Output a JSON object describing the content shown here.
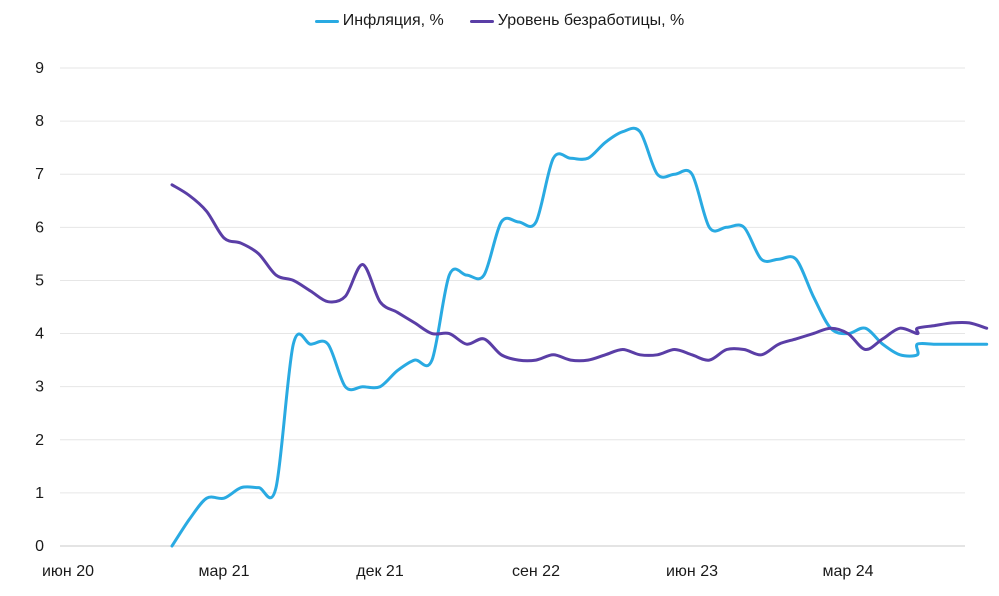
{
  "chart_data": {
    "type": "line",
    "title": "",
    "xlabel": "",
    "ylabel": "",
    "ylim": [
      0,
      9
    ],
    "y_ticks": [
      "0",
      "1",
      "2",
      "3",
      "4",
      "5",
      "6",
      "7",
      "8",
      "9"
    ],
    "x_tick_labels": [
      "июн 20",
      "мар 21",
      "дек 21",
      "сен 22",
      "июн 23",
      "мар 24"
    ],
    "x_tick_months": [
      "2020-06",
      "2021-03",
      "2021-12",
      "2022-09",
      "2023-06",
      "2024-03"
    ],
    "grid": "horizontal",
    "legend_position": "top-center",
    "series": [
      {
        "name": "Инфляция, %",
        "color": "#29aae2",
        "points": [
          [
            "2020-12",
            0.0
          ],
          [
            "2021-01",
            0.5
          ],
          [
            "2021-02",
            0.9
          ],
          [
            "2021-03",
            0.9
          ],
          [
            "2021-04",
            1.1
          ],
          [
            "2021-05",
            1.1
          ],
          [
            "2021-06",
            1.1
          ],
          [
            "2021-07",
            3.8
          ],
          [
            "2021-08",
            3.8
          ],
          [
            "2021-09",
            3.8
          ],
          [
            "2021-10",
            3.0
          ],
          [
            "2021-11",
            3.0
          ],
          [
            "2021-12",
            3.0
          ],
          [
            "2022-01",
            3.3
          ],
          [
            "2022-02",
            3.5
          ],
          [
            "2022-03",
            3.5
          ],
          [
            "2022-04",
            5.1
          ],
          [
            "2022-05",
            5.1
          ],
          [
            "2022-06",
            5.1
          ],
          [
            "2022-07",
            6.1
          ],
          [
            "2022-08",
            6.1
          ],
          [
            "2022-09",
            6.1
          ],
          [
            "2022-10",
            7.3
          ],
          [
            "2022-11",
            7.3
          ],
          [
            "2022-12",
            7.3
          ],
          [
            "2023-01",
            7.6
          ],
          [
            "2023-02",
            7.8
          ],
          [
            "2023-03",
            7.8
          ],
          [
            "2023-04",
            7.0
          ],
          [
            "2023-05",
            7.0
          ],
          [
            "2023-06",
            7.0
          ],
          [
            "2023-07",
            6.0
          ],
          [
            "2023-08",
            6.0
          ],
          [
            "2023-09",
            6.0
          ],
          [
            "2023-10",
            5.4
          ],
          [
            "2023-11",
            5.4
          ],
          [
            "2023-12",
            5.4
          ],
          [
            "2024-01",
            4.7
          ],
          [
            "2024-02",
            4.1
          ],
          [
            "2024-03",
            4.0
          ],
          [
            "2024-04",
            4.1
          ],
          [
            "2024-05",
            3.8
          ],
          [
            "2024-06",
            3.6
          ],
          [
            "2024-07",
            3.6
          ],
          [
            "2024-07",
            3.8
          ],
          [
            "2024-08",
            3.8
          ],
          [
            "2024-09",
            3.8
          ],
          [
            "2024-10",
            3.8
          ],
          [
            "2024-11",
            3.8
          ]
        ]
      },
      {
        "name": "Уровень безработицы, %",
        "color": "#5a3ea6",
        "points": [
          [
            "2020-12",
            6.8
          ],
          [
            "2021-01",
            6.6
          ],
          [
            "2021-02",
            6.3
          ],
          [
            "2021-03",
            5.8
          ],
          [
            "2021-04",
            5.7
          ],
          [
            "2021-05",
            5.5
          ],
          [
            "2021-06",
            5.1
          ],
          [
            "2021-07",
            5.0
          ],
          [
            "2021-08",
            4.8
          ],
          [
            "2021-09",
            4.6
          ],
          [
            "2021-10",
            4.7
          ],
          [
            "2021-11",
            5.3
          ],
          [
            "2021-12",
            4.6
          ],
          [
            "2022-01",
            4.4
          ],
          [
            "2022-02",
            4.2
          ],
          [
            "2022-03",
            4.0
          ],
          [
            "2022-04",
            4.0
          ],
          [
            "2022-05",
            3.8
          ],
          [
            "2022-06",
            3.9
          ],
          [
            "2022-07",
            3.6
          ],
          [
            "2022-08",
            3.5
          ],
          [
            "2022-09",
            3.5
          ],
          [
            "2022-10",
            3.6
          ],
          [
            "2022-11",
            3.5
          ],
          [
            "2022-12",
            3.5
          ],
          [
            "2023-01",
            3.6
          ],
          [
            "2023-02",
            3.7
          ],
          [
            "2023-03",
            3.6
          ],
          [
            "2023-04",
            3.6
          ],
          [
            "2023-05",
            3.7
          ],
          [
            "2023-06",
            3.6
          ],
          [
            "2023-07",
            3.5
          ],
          [
            "2023-08",
            3.7
          ],
          [
            "2023-09",
            3.7
          ],
          [
            "2023-10",
            3.6
          ],
          [
            "2023-11",
            3.8
          ],
          [
            "2023-12",
            3.9
          ],
          [
            "2024-01",
            4.0
          ],
          [
            "2024-02",
            4.1
          ],
          [
            "2024-03",
            4.0
          ],
          [
            "2024-04",
            3.7
          ],
          [
            "2024-05",
            3.9
          ],
          [
            "2024-06",
            4.1
          ],
          [
            "2024-07",
            4.0
          ],
          [
            "2024-07",
            4.1
          ],
          [
            "2024-08",
            4.15
          ],
          [
            "2024-09",
            4.2
          ],
          [
            "2024-10",
            4.2
          ],
          [
            "2024-11",
            4.1
          ]
        ]
      }
    ]
  }
}
